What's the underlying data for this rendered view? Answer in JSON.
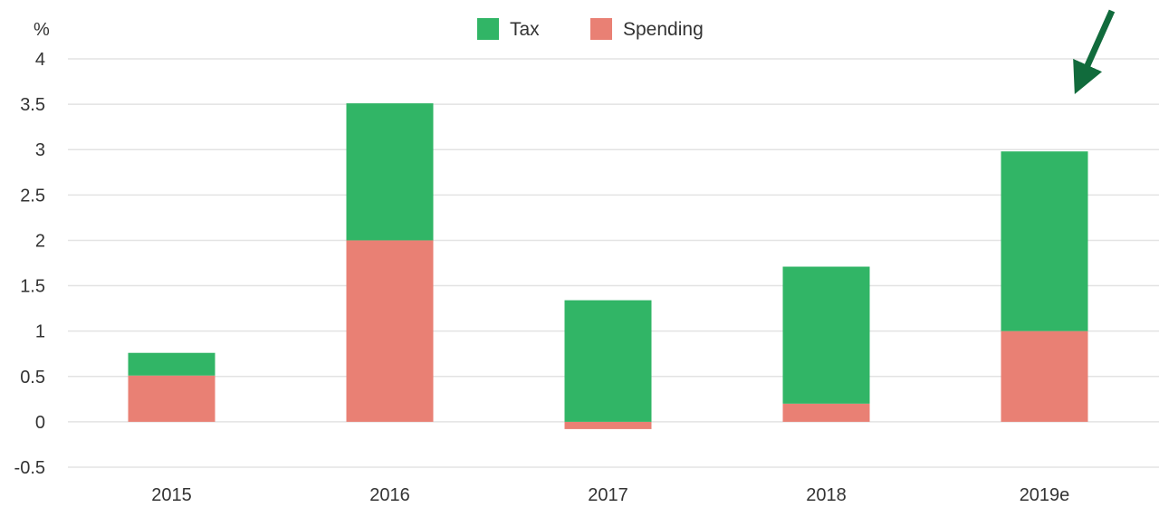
{
  "chart_data": {
    "type": "bar",
    "stacked": true,
    "categories": [
      "2015",
      "2016",
      "2017",
      "2018",
      "2019e"
    ],
    "series": [
      {
        "name": "Spending",
        "color": "#e98074",
        "values": [
          0.51,
          2.0,
          -0.08,
          0.2,
          1.0
        ]
      },
      {
        "name": "Tax",
        "color": "#31b566",
        "values": [
          0.25,
          1.51,
          1.34,
          1.51,
          1.98
        ]
      }
    ],
    "ylabel": "%",
    "ylim": [
      -0.5,
      4
    ],
    "yticks": [
      "-0.5",
      "0",
      "0.5",
      "1",
      "1.5",
      "2",
      "2.5",
      "3",
      "3.5",
      "4"
    ],
    "grid": true,
    "legend_position": "top-center",
    "legend_order": [
      "Tax",
      "Spending"
    ],
    "annotation": {
      "type": "arrow",
      "target": "2019e",
      "color": "#116b3c"
    }
  }
}
